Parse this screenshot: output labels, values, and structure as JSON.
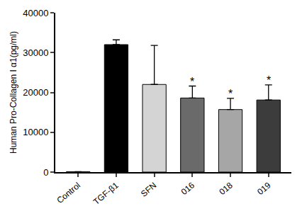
{
  "chart_data": {
    "type": "bar",
    "y_label": "Human Pro-Collagen I α1(pg/ml)",
    "categories": [
      "Control",
      "TGF-β1",
      "SFN",
      "016",
      "018",
      "019"
    ],
    "values": [
      100,
      32000,
      22000,
      18600,
      15700,
      18100
    ],
    "errors": [
      0,
      1200,
      9800,
      3000,
      2800,
      3800
    ],
    "colors": [
      "#ffffff",
      "#000000",
      "#d4d4d4",
      "#6a6a6a",
      "#a6a6a6",
      "#3c3c3c"
    ],
    "ylim": [
      0,
      40000
    ],
    "yticks": [
      0,
      10000,
      20000,
      30000,
      40000
    ],
    "grid": false,
    "annotations": [
      {
        "category": "016",
        "text": "*"
      },
      {
        "category": "018",
        "text": "*"
      },
      {
        "category": "019",
        "text": "*"
      }
    ]
  }
}
